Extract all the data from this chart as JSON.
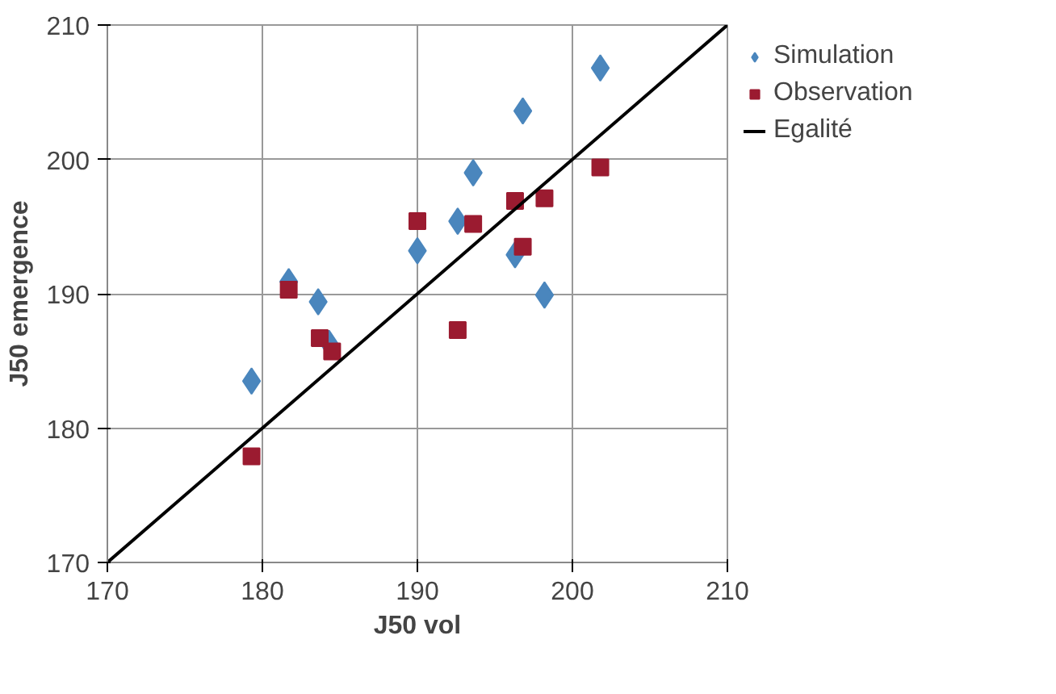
{
  "chart_data": {
    "type": "scatter",
    "xlabel": "J50 vol",
    "ylabel": "J50 emergence",
    "xlim": [
      170,
      210
    ],
    "ylim": [
      170,
      210
    ],
    "xticks": [
      170,
      180,
      190,
      200,
      210
    ],
    "yticks": [
      170,
      180,
      190,
      200,
      210
    ],
    "grid": true,
    "legend": "right",
    "series": [
      {
        "name": "Simulation",
        "color": "#4a86bd",
        "marker": "diamond",
        "x": [
          201.8,
          196.8,
          193.6,
          192.6,
          190.0,
          196.3,
          198.2,
          181.7,
          183.6,
          184.3,
          179.3
        ],
        "values": [
          206.8,
          203.6,
          199.0,
          195.4,
          193.2,
          192.9,
          189.9,
          190.9,
          189.4,
          186.3,
          183.5
        ]
      },
      {
        "name": "Observation",
        "color": "#9b1b30",
        "marker": "square",
        "x": [
          201.8,
          196.3,
          198.2,
          190.0,
          193.6,
          196.8,
          192.6,
          181.7,
          183.7,
          184.5,
          179.3
        ],
        "values": [
          199.4,
          196.9,
          197.1,
          195.4,
          195.2,
          193.5,
          187.3,
          190.3,
          186.7,
          185.7,
          177.9
        ]
      },
      {
        "name": "Egalité",
        "type": "line",
        "color": "#000000",
        "marker": "none",
        "line_style": "solid",
        "x": [
          170,
          210
        ],
        "values": [
          170,
          210
        ]
      }
    ]
  }
}
